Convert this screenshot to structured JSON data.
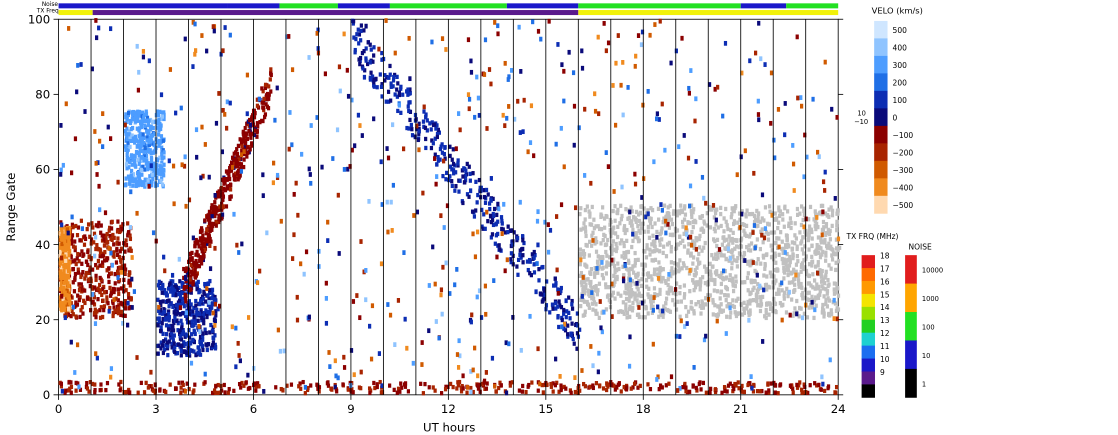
{
  "chart_data": {
    "type": "heatmap",
    "xlabel": "UT hours",
    "ylabel": "Range Gate",
    "xlim": [
      0,
      24
    ],
    "ylim": [
      0,
      100
    ],
    "x_ticks": [
      "0",
      "3",
      "6",
      "9",
      "12",
      "15",
      "18",
      "21",
      "24"
    ],
    "y_ticks": [
      "0",
      "20",
      "40",
      "60",
      "80",
      "100"
    ],
    "grid": "vertical lines every hour",
    "top_strips": [
      {
        "label": "Noise",
        "segments": [
          {
            "start": 0.0,
            "end": 5.2,
            "color": "#1a17c9"
          },
          {
            "start": 5.2,
            "end": 6.8,
            "color": "#1a17c9"
          },
          {
            "start": 6.8,
            "end": 8.6,
            "color": "#22e022"
          },
          {
            "start": 8.6,
            "end": 10.2,
            "color": "#1a17c9"
          },
          {
            "start": 10.2,
            "end": 13.8,
            "color": "#22e022"
          },
          {
            "start": 13.8,
            "end": 16.0,
            "color": "#1a17c9"
          },
          {
            "start": 16.0,
            "end": 21.0,
            "color": "#22e022"
          },
          {
            "start": 21.0,
            "end": 22.4,
            "color": "#1a17c9"
          },
          {
            "start": 22.4,
            "end": 24.0,
            "color": "#22e022"
          }
        ]
      },
      {
        "label": "TX Freq",
        "segments": [
          {
            "start": 0.0,
            "end": 1.05,
            "color": "#f2f20a"
          },
          {
            "start": 1.05,
            "end": 16.0,
            "color": "#5a1a8c"
          },
          {
            "start": 16.0,
            "end": 24.0,
            "color": "#f2f20a"
          }
        ]
      }
    ],
    "features": [
      {
        "name": "near-range backscatter",
        "x_range": [
          0,
          24
        ],
        "gate_range": [
          0,
          3
        ],
        "velocity_kms": -150
      },
      {
        "name": "morning red patch",
        "x_range": [
          0,
          2.2
        ],
        "gate_range": [
          20,
          46
        ],
        "velocity_kms": -150
      },
      {
        "name": "orange core",
        "x_range": [
          0,
          0.3
        ],
        "gate_range": [
          22,
          44
        ],
        "velocity_kms": -400
      },
      {
        "name": "blue velocity patch",
        "x_range": [
          2.0,
          3.2
        ],
        "gate_range": [
          55,
          75
        ],
        "velocity_kms": 300
      },
      {
        "name": "blue lower band",
        "x_range": [
          3.0,
          4.8
        ],
        "gate_range": [
          10,
          30
        ],
        "velocity_kms": 60
      },
      {
        "name": "rising trail",
        "x_range": [
          3.8,
          6.5
        ],
        "gate_range": [
          28,
          82
        ],
        "velocity_kms": -100
      },
      {
        "name": "descending trail",
        "x_range": [
          9.0,
          16.0
        ],
        "gate_range": [
          16,
          95
        ],
        "velocity_kms": 60
      },
      {
        "name": "ground scatter",
        "x_range": [
          16.0,
          24.0
        ],
        "gate_range": [
          20,
          50
        ],
        "velocity_kms": 0
      }
    ],
    "legends": [
      {
        "title": "VELO (km/s)",
        "scale": [
          {
            "value": 500,
            "color": "#cfe6ff"
          },
          {
            "value": 400,
            "color": "#8fc4ff"
          },
          {
            "value": 300,
            "color": "#4d9dff"
          },
          {
            "value": 200,
            "color": "#1f6fe6"
          },
          {
            "value": 100,
            "color": "#0c2db3"
          },
          {
            "value": 0,
            "color": "#0a0a7a"
          },
          {
            "value": -100,
            "color": "#8b0000"
          },
          {
            "value": -200,
            "color": "#a82400"
          },
          {
            "value": -300,
            "color": "#d05a00"
          },
          {
            "value": -400,
            "color": "#f08a1e"
          },
          {
            "value": -500,
            "color": "#ffd9b0"
          }
        ],
        "tick_labels": [
          "500",
          "400",
          "300",
          "200",
          "100",
          "0",
          "−100",
          "−200",
          "−300",
          "−400",
          "−500"
        ],
        "side_labels": [
          "10",
          "−10"
        ]
      },
      {
        "title": "TX FRQ (MHz)",
        "colors": [
          "#e11d1d",
          "#ff6a00",
          "#ff9900",
          "#f4e400",
          "#9ae000",
          "#22d022",
          "#1fd1d1",
          "#1c6ef0",
          "#1a17c9",
          "#5a1a8c",
          "#000000"
        ],
        "tick_labels": [
          "18",
          "17",
          "16",
          "15",
          "14",
          "13",
          "12",
          "11",
          "10",
          "9"
        ]
      },
      {
        "title": "NOISE",
        "colors": [
          "#e11d1d",
          "#ffa500",
          "#22e022",
          "#1a17c9",
          "#000000"
        ],
        "tick_labels": [
          "10000",
          "1000",
          "100",
          "10",
          "1"
        ]
      }
    ],
    "ground_scatter_color": "#c0c0c0"
  }
}
